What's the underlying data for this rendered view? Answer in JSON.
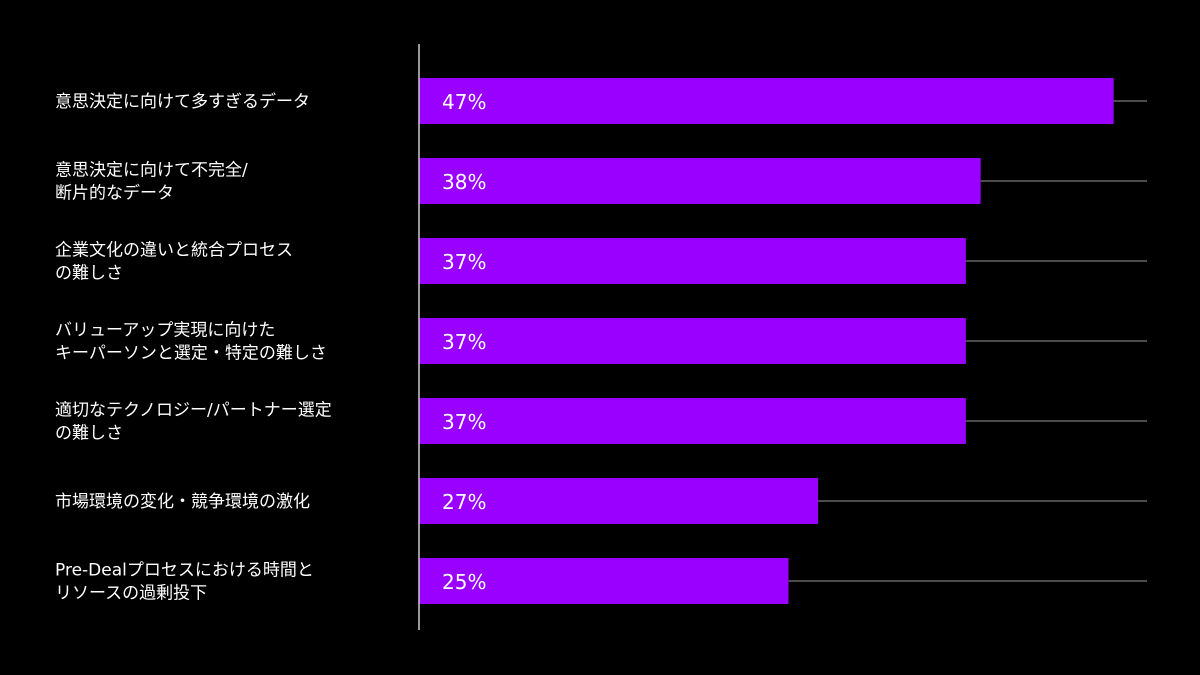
{
  "chart_data": {
    "type": "bar",
    "orientation": "horizontal",
    "title": "",
    "xlabel": "",
    "ylabel": "",
    "xlim": [
      0,
      50
    ],
    "categories": [
      [
        "意思決定に向けて多すぎるデータ"
      ],
      [
        "意思決定に向けて不完全/",
        "断片的なデータ"
      ],
      [
        "企業文化の違いと統合プロセス",
        "の難しさ"
      ],
      [
        "バリューアップ実現に向けた",
        "キーパーソンと選定・特定の難しさ"
      ],
      [
        "適切なテクノロジー/パートナー選定",
        "の難しさ"
      ],
      [
        "市場環境の変化・競争環境の激化"
      ],
      [
        "Pre-Dealプロセスにおける時間と",
        "リソースの過剰投下"
      ]
    ],
    "values": [
      47,
      38,
      37,
      37,
      37,
      27,
      25
    ],
    "data_labels": [
      "47%",
      "38%",
      "37%",
      "37%",
      "37%",
      "27%",
      "25%"
    ],
    "colors": {
      "bar": "#9900ff",
      "background": "#000000",
      "text": "#ffffff",
      "axis": "#cccccc",
      "guide": "#9a9a9a"
    },
    "grid": false,
    "legend": "none"
  }
}
